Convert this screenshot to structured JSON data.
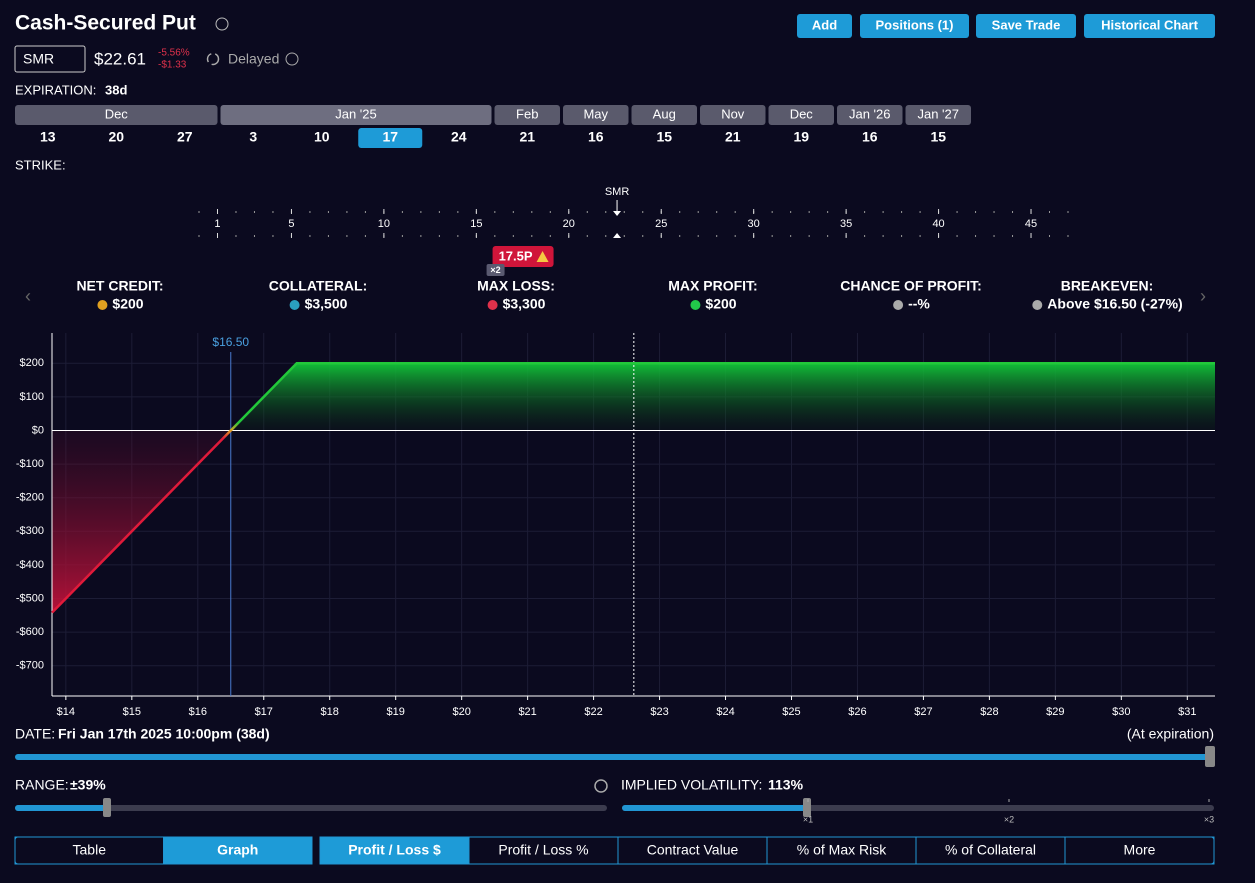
{
  "header": {
    "title": "Cash-Secured Put",
    "ticker": "SMR",
    "price": {
      "value": 22.61,
      "label": "$22.61"
    },
    "change_pct": "-5.56%",
    "change_abs": "-$1.33",
    "status": "Delayed"
  },
  "actions": [
    "Add",
    "Positions (1)",
    "Save Trade",
    "Historical Chart"
  ],
  "expiration": {
    "label": "EXPIRATION:",
    "value": "38d",
    "months": [
      {
        "name": "Dec",
        "days": [
          13,
          20,
          27
        ]
      },
      {
        "name": "Jan '25",
        "days": [
          3,
          10,
          17,
          24
        ],
        "selected_day": 17
      },
      {
        "name": "Feb",
        "days": [
          21
        ]
      },
      {
        "name": "May",
        "days": [
          16
        ]
      },
      {
        "name": "Aug",
        "days": [
          15
        ]
      },
      {
        "name": "Nov",
        "days": [
          21
        ]
      },
      {
        "name": "Dec",
        "days": [
          19
        ]
      },
      {
        "name": "Jan '26",
        "days": [
          16
        ]
      },
      {
        "name": "Jan '27",
        "days": [
          15
        ]
      }
    ]
  },
  "strike": {
    "label": "STRIKE:",
    "range": [
      0,
      47
    ],
    "ticks": [
      1,
      5,
      10,
      15,
      20,
      25,
      30,
      35,
      40,
      45
    ],
    "underlying": "SMR",
    "selected": {
      "value": 17.5,
      "label": "17.5P"
    },
    "quantity": "×2"
  },
  "metrics": [
    {
      "label": "NET CREDIT:",
      "value": "$200"
    },
    {
      "label": "COLLATERAL:",
      "value": "$3,500"
    },
    {
      "label": "MAX LOSS:",
      "value": "$3,300"
    },
    {
      "label": "MAX PROFIT:",
      "value": "$200"
    },
    {
      "label": "CHANCE OF PROFIT:",
      "value": "--%"
    },
    {
      "label": "BREAKEVEN:",
      "value": "Above $16.50 (-27%)"
    }
  ],
  "chart_data": {
    "type": "line",
    "x": [
      13.79,
      16.5,
      17.5,
      31.42
    ],
    "values": [
      -542,
      0,
      200,
      200
    ],
    "xlim": [
      13.79,
      31.42
    ],
    "ylim": [
      -790,
      290
    ],
    "xticks": [
      {
        "value": 14,
        "label": "$14"
      },
      {
        "value": 15,
        "label": "$15"
      },
      {
        "value": 16,
        "label": "$16"
      },
      {
        "value": 17,
        "label": "$17"
      },
      {
        "value": 18,
        "label": "$18"
      },
      {
        "value": 19,
        "label": "$19"
      },
      {
        "value": 20,
        "label": "$20"
      },
      {
        "value": 21,
        "label": "$21"
      },
      {
        "value": 22,
        "label": "$22"
      },
      {
        "value": 23,
        "label": "$23"
      },
      {
        "value": 24,
        "label": "$24"
      },
      {
        "value": 25,
        "label": "$25"
      },
      {
        "value": 26,
        "label": "$26"
      },
      {
        "value": 27,
        "label": "$27"
      },
      {
        "value": 28,
        "label": "$28"
      },
      {
        "value": 29,
        "label": "$29"
      },
      {
        "value": 30,
        "label": "$30"
      },
      {
        "value": 31,
        "label": "$31"
      }
    ],
    "yticks": [
      {
        "value": 200,
        "label": "$200"
      },
      {
        "value": 100,
        "label": "$100"
      },
      {
        "value": 0,
        "label": "$0"
      },
      {
        "value": -100,
        "label": "-$100"
      },
      {
        "value": -200,
        "label": "-$200"
      },
      {
        "value": -300,
        "label": "-$300"
      },
      {
        "value": -400,
        "label": "-$400"
      },
      {
        "value": -500,
        "label": "-$500"
      },
      {
        "value": -600,
        "label": "-$600"
      },
      {
        "value": -700,
        "label": "-$700"
      }
    ],
    "grid": true,
    "breakeven": {
      "value": 16.5,
      "label": "$16.50"
    }
  },
  "date": {
    "label": "DATE:",
    "value": "Fri Jan 17th 2025 10:00pm (38d)",
    "note": "(At expiration)"
  },
  "range": {
    "label": "RANGE:",
    "value": "±39%"
  },
  "volatility": {
    "label": "IMPLIED VOLATILITY:",
    "value": "113%",
    "ticks": [
      "×1",
      "×2",
      "×3"
    ]
  },
  "views": [
    "Table",
    "Graph"
  ],
  "active_view": "Graph",
  "modes": [
    "Profit / Loss $",
    "Profit / Loss %",
    "Contract Value",
    "% of Max Risk",
    "% of Collateral",
    "More"
  ],
  "active_mode": "Profit / Loss $"
}
